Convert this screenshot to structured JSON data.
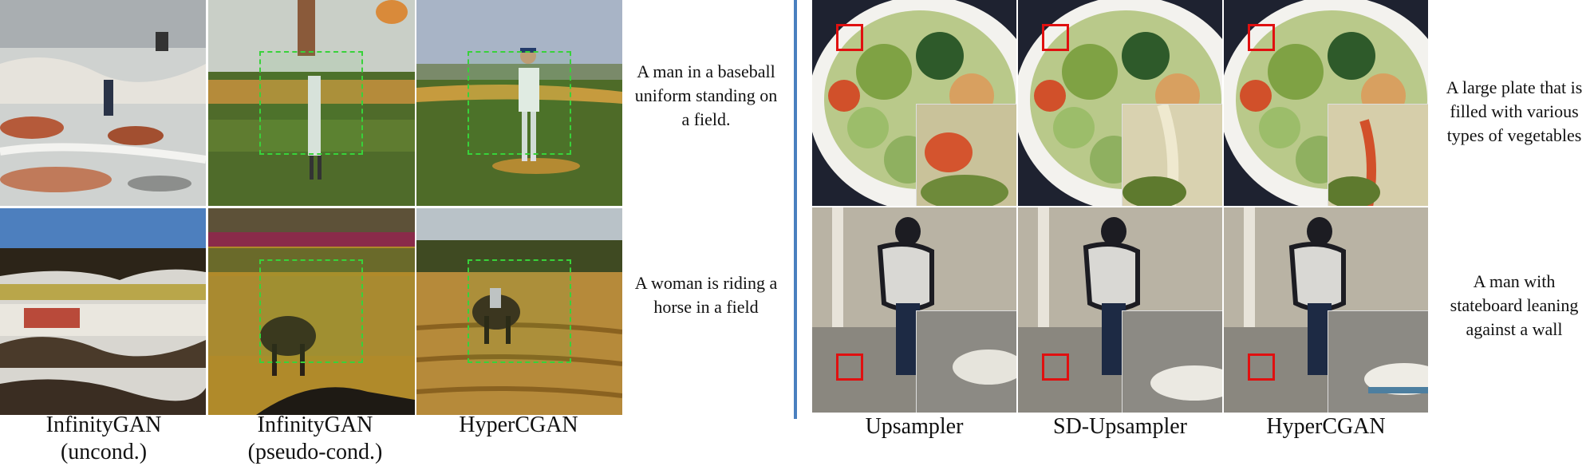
{
  "left_panel": {
    "rows": [
      {
        "caption": "A man in a baseball uniform standing on a field."
      },
      {
        "caption": "A woman is riding a horse in a field"
      }
    ],
    "columns": [
      {
        "label": "InfinityGAN (uncond.)"
      },
      {
        "label": "InfinityGAN (pseudo-cond.)"
      },
      {
        "label": "HyperCGAN"
      }
    ]
  },
  "right_panel": {
    "rows": [
      {
        "caption": "A large plate that is filled with various types of vegetables"
      },
      {
        "caption": "A man with stateboard leaning against a wall"
      }
    ],
    "columns": [
      {
        "label": "Upsampler"
      },
      {
        "label": "SD-Upsampler"
      },
      {
        "label": "HyperCGAN"
      }
    ]
  },
  "colors": {
    "divider": "#4a7fbf",
    "crop_box": "#e01010",
    "center_box": "#38d23a"
  }
}
